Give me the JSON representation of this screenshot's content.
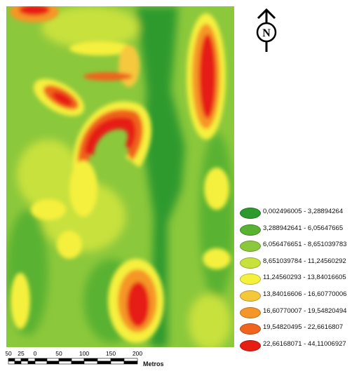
{
  "north": {
    "letter": "N",
    "icon": "north-arrow-icon"
  },
  "legend": {
    "items": [
      {
        "label": "0,002496005 - 3,28894264",
        "color": "#2e9a2e"
      },
      {
        "label": "3,288942641 - 6,05647665",
        "color": "#5ab232"
      },
      {
        "label": "6,056476651 - 8,651039783",
        "color": "#8cc83c"
      },
      {
        "label": "8,651039784 - 11,24560292",
        "color": "#c8e13c"
      },
      {
        "label": "11,24560293 - 13,84016605",
        "color": "#f5f03c"
      },
      {
        "label": "13,84016606 - 16,60770006",
        "color": "#f5c83c"
      },
      {
        "label": "16,60770007 - 19,54820494",
        "color": "#f59628"
      },
      {
        "label": "19,54820495 - 22,6616807",
        "color": "#f0641e"
      },
      {
        "label": "22,66168071 - 44,11006927",
        "color": "#e61e14"
      }
    ]
  },
  "scale_bar": {
    "ticks": [
      "50",
      "25",
      "0",
      "50",
      "100",
      "150",
      "200"
    ],
    "unit": "Metros"
  }
}
